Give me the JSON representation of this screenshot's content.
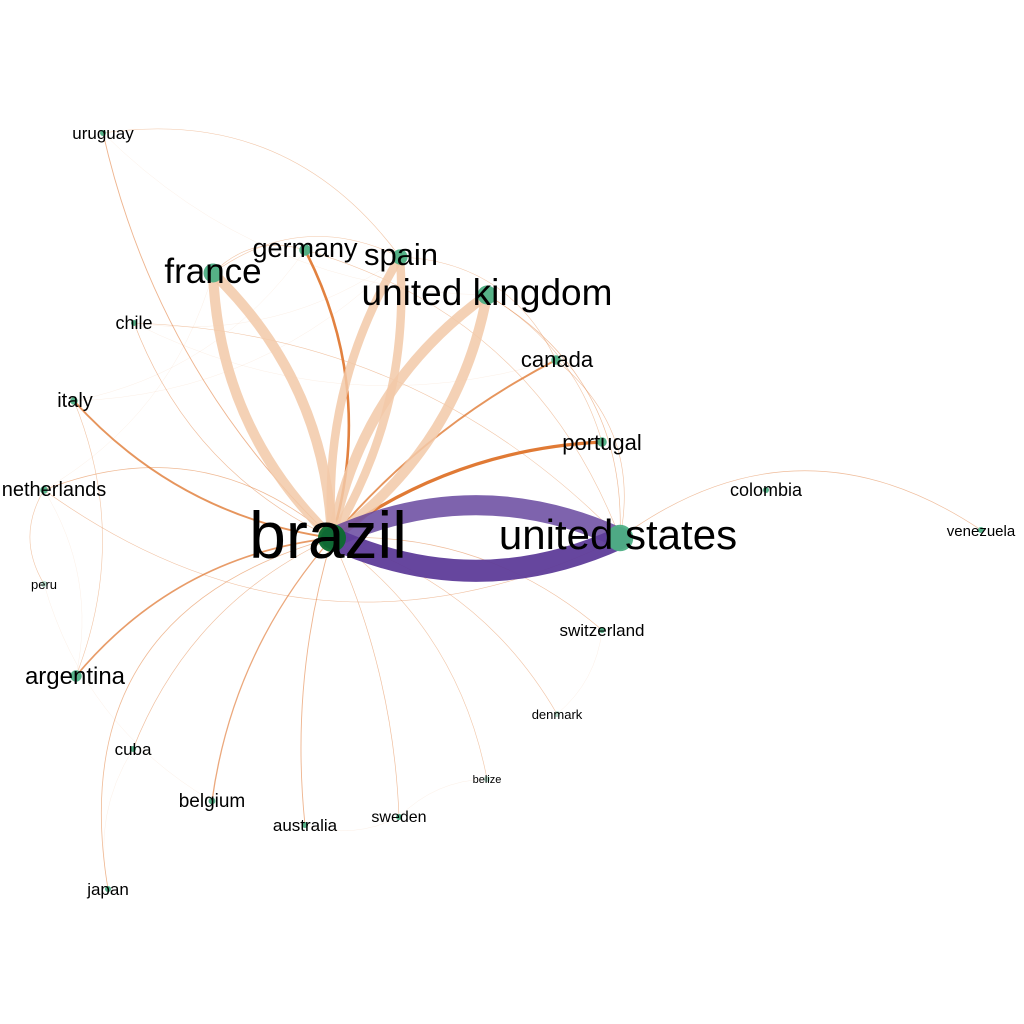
{
  "colors": {
    "background": "#ffffff",
    "node_fill": "#4daf84",
    "hub_node_fill": "#0b6b2e",
    "edge_orange": "#e07a35",
    "edge_pale": "#f2c9a8",
    "edge_purple": "#5e3c99"
  },
  "nodes": [
    {
      "id": "brazil",
      "label": "brazil",
      "weight": 10,
      "hub": true
    },
    {
      "id": "united-states",
      "label": "united states",
      "weight": 7
    },
    {
      "id": "united-kingdom",
      "label": "united kingdom",
      "weight": 5
    },
    {
      "id": "france",
      "label": "france",
      "weight": 5
    },
    {
      "id": "spain",
      "label": "spain",
      "weight": 4
    },
    {
      "id": "germany",
      "label": "germany",
      "weight": 3
    },
    {
      "id": "canada",
      "label": "canada",
      "weight": 2.5
    },
    {
      "id": "portugal",
      "label": "portugal",
      "weight": 2.5
    },
    {
      "id": "argentina",
      "label": "argentina",
      "weight": 3
    },
    {
      "id": "uruguay",
      "label": "uruguay",
      "weight": 1.5
    },
    {
      "id": "chile",
      "label": "chile",
      "weight": 1.5
    },
    {
      "id": "italy",
      "label": "italy",
      "weight": 2
    },
    {
      "id": "netherlands",
      "label": "netherlands",
      "weight": 2
    },
    {
      "id": "peru",
      "label": "peru",
      "weight": 0.6
    },
    {
      "id": "cuba",
      "label": "cuba",
      "weight": 1.3
    },
    {
      "id": "belgium",
      "label": "belgium",
      "weight": 1.8
    },
    {
      "id": "australia",
      "label": "australia",
      "weight": 1.5
    },
    {
      "id": "sweden",
      "label": "sweden",
      "weight": 1.3
    },
    {
      "id": "japan",
      "label": "japan",
      "weight": 1.5
    },
    {
      "id": "belize",
      "label": "belize",
      "weight": 0.5
    },
    {
      "id": "denmark",
      "label": "denmark",
      "weight": 0.8
    },
    {
      "id": "switzerland",
      "label": "switzerland",
      "weight": 1.5
    },
    {
      "id": "colombia",
      "label": "colombia",
      "weight": 1.6
    },
    {
      "id": "venezuela",
      "label": "venezuela",
      "weight": 1.0
    }
  ],
  "edges": [
    {
      "source": "brazil",
      "target": "united-states",
      "strength": 10,
      "tone": "purple"
    },
    {
      "source": "brazil",
      "target": "france",
      "strength": 6,
      "tone": "pale"
    },
    {
      "source": "brazil",
      "target": "united-kingdom",
      "strength": 6,
      "tone": "pale"
    },
    {
      "source": "brazil",
      "target": "spain",
      "strength": 5,
      "tone": "pale"
    },
    {
      "source": "brazil",
      "target": "germany",
      "strength": 2,
      "tone": "orange"
    },
    {
      "source": "brazil",
      "target": "canada",
      "strength": 1.5,
      "tone": "orange"
    },
    {
      "source": "brazil",
      "target": "portugal",
      "strength": 2.5,
      "tone": "orange"
    },
    {
      "source": "brazil",
      "target": "italy",
      "strength": 1.5,
      "tone": "orange"
    },
    {
      "source": "brazil",
      "target": "argentina",
      "strength": 1.3,
      "tone": "orange"
    },
    {
      "source": "brazil",
      "target": "uruguay",
      "strength": 0.7,
      "tone": "orange"
    },
    {
      "source": "brazil",
      "target": "belgium",
      "strength": 1,
      "tone": "orange"
    },
    {
      "source": "brazil",
      "target": "japan",
      "strength": 0.6,
      "tone": "orange"
    },
    {
      "source": "brazil",
      "target": "australia",
      "strength": 0.7,
      "tone": "orange"
    },
    {
      "source": "brazil",
      "target": "netherlands",
      "strength": 0.6,
      "tone": "orange"
    },
    {
      "source": "brazil",
      "target": "switzerland",
      "strength": 0.5,
      "tone": "orange"
    },
    {
      "source": "brazil",
      "target": "sweden",
      "strength": 0.5,
      "tone": "orange"
    },
    {
      "source": "brazil",
      "target": "cuba",
      "strength": 0.5,
      "tone": "orange"
    },
    {
      "source": "brazil",
      "target": "chile",
      "strength": 0.5,
      "tone": "orange"
    },
    {
      "source": "brazil",
      "target": "denmark",
      "strength": 0.4,
      "tone": "orange"
    },
    {
      "source": "brazil",
      "target": "belize",
      "strength": 0.3,
      "tone": "orange"
    },
    {
      "source": "united-states",
      "target": "venezuela",
      "strength": 0.5,
      "tone": "orange"
    },
    {
      "source": "united-states",
      "target": "united-kingdom",
      "strength": 0.5,
      "tone": "orange"
    },
    {
      "source": "united-states",
      "target": "canada",
      "strength": 0.4,
      "tone": "orange"
    },
    {
      "source": "united-states",
      "target": "chile",
      "strength": 0.3,
      "tone": "orange"
    },
    {
      "source": "united-states",
      "target": "germany",
      "strength": 0.3,
      "tone": "orange"
    },
    {
      "source": "netherlands",
      "target": "united-states",
      "strength": 0.4,
      "tone": "orange"
    },
    {
      "source": "netherlands",
      "target": "peru",
      "strength": 0.3,
      "tone": "orange"
    },
    {
      "source": "spain",
      "target": "canada",
      "strength": 0.3,
      "tone": "orange"
    },
    {
      "source": "france",
      "target": "spain",
      "strength": 0.3,
      "tone": "orange"
    },
    {
      "source": "france",
      "target": "germany",
      "strength": 0.3,
      "tone": "orange"
    },
    {
      "source": "uruguay",
      "target": "spain",
      "strength": 0.3,
      "tone": "orange"
    },
    {
      "source": "argentina",
      "target": "italy",
      "strength": 0.3,
      "tone": "orange"
    },
    {
      "source": "portugal",
      "target": "united-kingdom",
      "strength": 0.3,
      "tone": "orange"
    }
  ]
}
